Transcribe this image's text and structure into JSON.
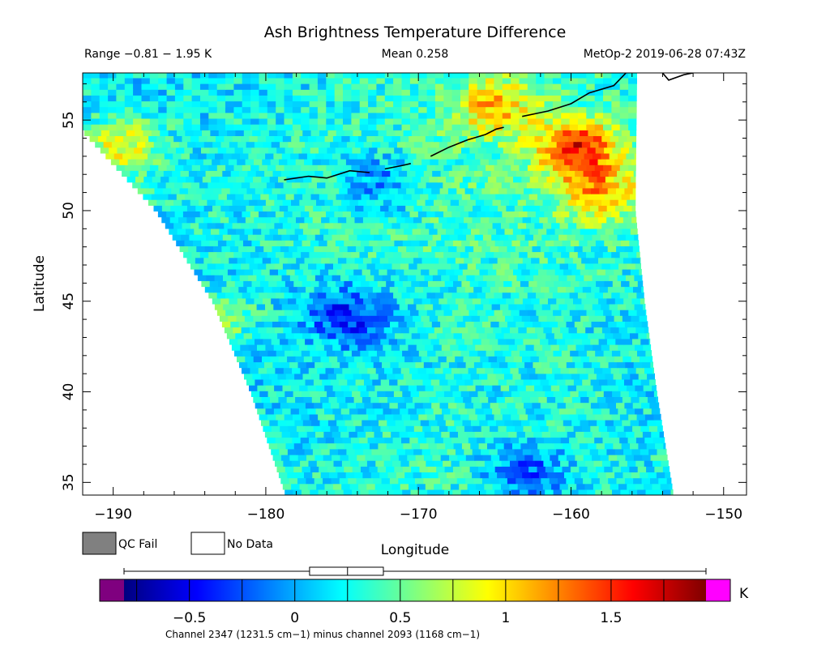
{
  "chart_data": {
    "type": "heatmap",
    "title": "Ash Brightness Temperature Difference",
    "header_left": "Range −0.81 − 1.95 K",
    "header_center": "Mean 0.258",
    "header_right": "MetOp-2 2019-06-28 07:43Z",
    "xlabel": "Longitude",
    "ylabel": "Latitude",
    "xlim": [
      -192,
      -148.5
    ],
    "ylim": [
      34.3,
      57.6
    ],
    "xticks": [
      -190,
      -180,
      -170,
      -160,
      -150
    ],
    "xtick_labels": [
      "−190",
      "−180",
      "−170",
      "−160",
      "−150"
    ],
    "yticks": [
      35,
      40,
      45,
      50,
      55
    ],
    "ytick_labels": [
      "35",
      "40",
      "45",
      "50",
      "55"
    ],
    "value_range": [
      -0.81,
      1.95
    ],
    "mean": 0.258,
    "units": "K",
    "colorbar": {
      "min": -0.81,
      "max": 1.95,
      "ticks": [
        -0.5,
        0,
        0.5,
        1,
        1.5
      ],
      "tick_labels": [
        "−0.5",
        "0",
        "0.5",
        "1",
        "1.5"
      ],
      "unit_label": "K",
      "caption": "Channel 2347 (1231.5 cm−1) minus channel 2093 (1168 cm−1)",
      "under_color": "#7f007f",
      "over_color": "#ff00ff",
      "stops": [
        "#00007f",
        "#0000ff",
        "#0080ff",
        "#00ffff",
        "#80ff80",
        "#ffff00",
        "#ff8000",
        "#ff0000",
        "#7f0000"
      ],
      "boxplot": {
        "min": -0.81,
        "q1": 0.07,
        "median": 0.25,
        "q3": 0.42,
        "max": 1.95
      }
    },
    "legend": [
      {
        "label": "QC Fail",
        "color": "#808080"
      },
      {
        "label": "No Data",
        "color": "#ffffff"
      }
    ],
    "swath": {
      "lon_min_edge": [
        [
          57.6,
          -192.0
        ],
        [
          54.4,
          -192.0
        ],
        [
          50,
          -187.2
        ],
        [
          45,
          -183.5
        ],
        [
          40,
          -181.0
        ],
        [
          34.3,
          -178.7
        ]
      ],
      "lon_max_edge": [
        [
          57.6,
          -155.7
        ],
        [
          50,
          -155.8
        ],
        [
          45,
          -155.2
        ],
        [
          40,
          -154.4
        ],
        [
          34.3,
          -153.3
        ]
      ]
    },
    "field_regions": [
      {
        "lon": -172.5,
        "lat": 51.5,
        "value": -0.35
      },
      {
        "lon": -174.5,
        "lat": 44.2,
        "value": -0.55
      },
      {
        "lon": -163.0,
        "lat": 35.5,
        "value": -0.45
      },
      {
        "lon": -159.6,
        "lat": 53.5,
        "value": 1.6
      },
      {
        "lon": -158.0,
        "lat": 51.0,
        "value": 1.05
      },
      {
        "lon": -189.5,
        "lat": 53.5,
        "value": 1.0
      },
      {
        "lon": -165.0,
        "lat": 55.8,
        "value": 1.1
      },
      {
        "lon": -183.0,
        "lat": 44.0,
        "value": 0.7
      }
    ]
  },
  "coastlines": [
    [
      [
        -164.4,
        54.6
      ],
      [
        -164.9,
        54.5
      ],
      [
        -165.6,
        54.2
      ],
      [
        -166.8,
        53.9
      ],
      [
        -168.0,
        53.5
      ],
      [
        -169.2,
        53.0
      ]
    ],
    [
      [
        -170.5,
        52.6
      ],
      [
        -171.0,
        52.5
      ],
      [
        -172.2,
        52.3
      ]
    ],
    [
      [
        -173.2,
        52.1
      ],
      [
        -174.5,
        52.2
      ],
      [
        -176.0,
        51.8
      ],
      [
        -177.2,
        51.9
      ],
      [
        -178.8,
        51.7
      ]
    ],
    [
      [
        -163.2,
        55.2
      ],
      [
        -161.5,
        55.5
      ],
      [
        -160.0,
        55.9
      ],
      [
        -158.8,
        56.5
      ],
      [
        -157.2,
        56.9
      ],
      [
        -156.4,
        57.6
      ]
    ],
    [
      [
        -154.0,
        57.6
      ],
      [
        -153.6,
        57.2
      ],
      [
        -152.6,
        57.5
      ],
      [
        -152.0,
        57.6
      ]
    ]
  ]
}
